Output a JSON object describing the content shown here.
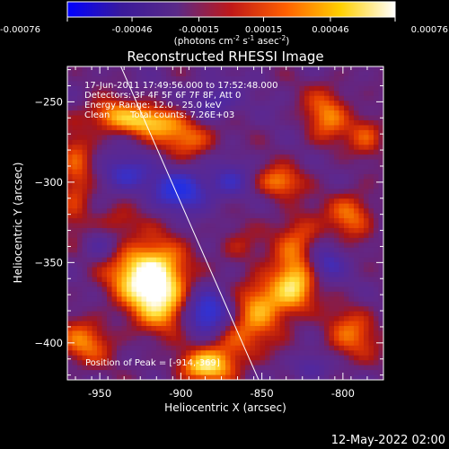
{
  "chart_data": {
    "type": "heatmap",
    "title": "Reconstructed RHESSI Image",
    "xlabel": "Heliocentric X (arcsec)",
    "ylabel": "Heliocentric Y (arcsec)",
    "xlim": [
      -970,
      -775
    ],
    "ylim": [
      -423,
      -228
    ],
    "x_ticks": [
      -950,
      -900,
      -850,
      -800
    ],
    "y_ticks": [
      -250,
      -300,
      -350,
      -400
    ],
    "x_tick_labels": [
      "-950",
      "-900",
      "-850",
      "-800"
    ],
    "y_tick_labels": [
      "−250",
      "−300",
      "−350",
      "−400"
    ],
    "colorbar": {
      "range": [
        -0.00076,
        0.00076
      ],
      "tick_labels": [
        "-0.00076",
        "-0.00046",
        "-0.00015",
        "0.00015",
        "0.00046",
        "0.00076"
      ],
      "tick_values": [
        -0.00076,
        -0.00046,
        -0.00015,
        0.00015,
        0.00046,
        0.00076
      ],
      "units_prefix": "(photons cm",
      "units_exp1": "-2",
      "units_mid1": " s",
      "units_exp2": "-1",
      "units_mid2": " asec",
      "units_exp3": "-2",
      "units_suffix": ")",
      "colors": [
        "#0000ff",
        "#3a1a9a",
        "#5a2a88",
        "#c01818",
        "#ff6000",
        "#ffd000",
        "#ffffff"
      ]
    },
    "annotations": {
      "time_range": "17-Jun-2011 17:49:56.000 to 17:52:48.000",
      "detectors": "Detectors: 3F 4F 5F 6F 7F 8F, Att 0",
      "energy_range": "Energy Range: 12.0 - 25.0 keV",
      "clean_label": "Clean",
      "total_counts": "Total counts: 7.26E+03",
      "peak_position": "Position of Peak = [-914,-369]"
    },
    "peak": {
      "x": -914,
      "y": -369
    },
    "limb_line": [
      [
        -937,
        -228
      ],
      [
        -852,
        -423
      ]
    ],
    "blobs": [
      {
        "x": -915,
        "y": -365,
        "sx": 13,
        "sy": 17,
        "a": 1.0
      },
      {
        "x": -930,
        "y": -355,
        "sx": 15,
        "sy": 13,
        "a": 0.45
      },
      {
        "x": -898,
        "y": -380,
        "sx": 10,
        "sy": 10,
        "a": 0.35
      },
      {
        "x": -920,
        "y": -262,
        "sx": 15,
        "sy": 7,
        "a": 0.7
      },
      {
        "x": -895,
        "y": -273,
        "sx": 12,
        "sy": 8,
        "a": 0.5
      },
      {
        "x": -945,
        "y": -258,
        "sx": 10,
        "sy": 7,
        "a": 0.45
      },
      {
        "x": -965,
        "y": -298,
        "sx": 8,
        "sy": 22,
        "a": 0.45
      },
      {
        "x": -960,
        "y": -400,
        "sx": 12,
        "sy": 10,
        "a": 0.5
      },
      {
        "x": -885,
        "y": -415,
        "sx": 12,
        "sy": 7,
        "a": 0.7
      },
      {
        "x": -870,
        "y": -398,
        "sx": 14,
        "sy": 12,
        "a": 0.5
      },
      {
        "x": -850,
        "y": -375,
        "sx": 11,
        "sy": 13,
        "a": 0.6
      },
      {
        "x": -830,
        "y": -365,
        "sx": 9,
        "sy": 12,
        "a": 0.7
      },
      {
        "x": -828,
        "y": -335,
        "sx": 10,
        "sy": 12,
        "a": 0.45
      },
      {
        "x": -840,
        "y": -300,
        "sx": 10,
        "sy": 7,
        "a": 0.55
      },
      {
        "x": -795,
        "y": -320,
        "sx": 10,
        "sy": 10,
        "a": 0.5
      },
      {
        "x": -810,
        "y": -258,
        "sx": 10,
        "sy": 13,
        "a": 0.5
      },
      {
        "x": -785,
        "y": -270,
        "sx": 8,
        "sy": 9,
        "a": 0.4
      },
      {
        "x": -795,
        "y": -395,
        "sx": 12,
        "sy": 12,
        "a": 0.45
      },
      {
        "x": -865,
        "y": -340,
        "sx": 9,
        "sy": 8,
        "a": 0.25
      },
      {
        "x": -940,
        "y": -325,
        "sx": 10,
        "sy": 7,
        "a": 0.3
      },
      {
        "x": -900,
        "y": -305,
        "sx": 12,
        "sy": 9,
        "a": -0.7
      },
      {
        "x": -885,
        "y": -382,
        "sx": 12,
        "sy": 11,
        "a": -0.9
      },
      {
        "x": -935,
        "y": -295,
        "sx": 11,
        "sy": 8,
        "a": -0.5
      },
      {
        "x": -870,
        "y": -300,
        "sx": 9,
        "sy": 8,
        "a": -0.4
      },
      {
        "x": -810,
        "y": -350,
        "sx": 8,
        "sy": 8,
        "a": -0.4
      },
      {
        "x": -880,
        "y": -250,
        "sx": 10,
        "sy": 8,
        "a": -0.4
      },
      {
        "x": -950,
        "y": -340,
        "sx": 8,
        "sy": 8,
        "a": -0.35
      },
      {
        "x": -820,
        "y": -415,
        "sx": 8,
        "sy": 6,
        "a": -0.35
      }
    ]
  },
  "footer": {
    "date": "12-May-2022 02:00"
  }
}
